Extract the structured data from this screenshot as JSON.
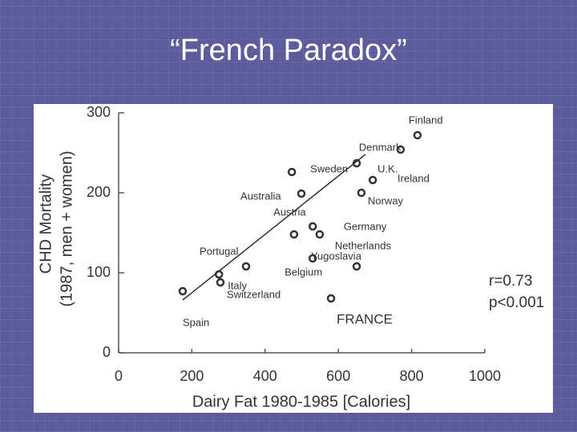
{
  "chart_data": {
    "type": "scatter",
    "title": "“French Paradox”",
    "x_label": "Dairy Fat 1980-1985 [Calories]",
    "y_label_lines": [
      "CHD Mortality",
      "(1987, men + women)"
    ],
    "x": [
      816,
      770,
      650,
      694,
      473,
      499,
      663,
      530,
      479,
      549,
      530,
      650,
      348,
      274,
      278,
      175,
      580
    ],
    "y": [
      272,
      254,
      237,
      216,
      226,
      199,
      200,
      158,
      148,
      148,
      118,
      108,
      108,
      98,
      88,
      77,
      68
    ],
    "point_labels": [
      "Finland",
      "Denmark",
      "Ireland",
      "U.K.",
      "Sweden",
      "Australia",
      "Norway",
      "Austria",
      "Germany",
      "Netherlands",
      "Belgium",
      "Yugoslavia",
      "Portugal",
      "Italy",
      "Switzerland",
      "Spain",
      "FRANCE"
    ],
    "trend_line": {
      "x": [
        175,
        674
      ],
      "y": [
        66,
        248
      ]
    },
    "annotations": [
      "r=0.73",
      "p<0.001"
    ],
    "xlim": [
      0,
      1000
    ],
    "xticks": [
      0,
      200,
      400,
      600,
      800,
      1000
    ],
    "ylim": [
      0,
      300
    ],
    "yticks": [
      0,
      100,
      200,
      300
    ],
    "color": "#333333"
  }
}
